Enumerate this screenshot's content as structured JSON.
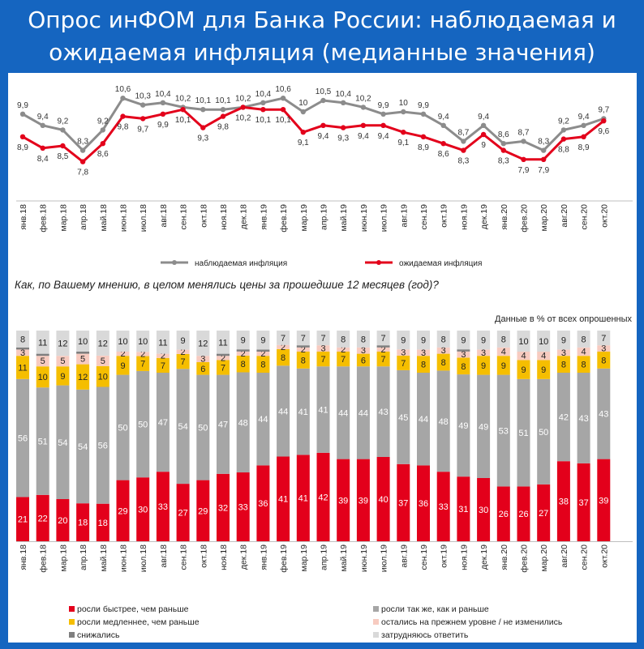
{
  "title": {
    "line1": "Опрос инФОМ для Банка России: наблюдаемая и",
    "line2": "ожидаемая инфляция (медианные значения)"
  },
  "colors": {
    "header_bg": "#1565c0",
    "observed": "#8c8c8c",
    "expected": "#e3001b",
    "faster": "#e3001b",
    "same": "#a6a6a6",
    "slower": "#f5be00",
    "unchanged": "#f7cbc0",
    "decreased": "#7f7f7f",
    "hard_to_say": "#d9d9d9"
  },
  "months": [
    "янв.18",
    "фев.18",
    "мар.18",
    "апр.18",
    "май.18",
    "июн.18",
    "июл.18",
    "авг.18",
    "сен.18",
    "окт.18",
    "ноя.18",
    "дек.18",
    "янв.19",
    "фев.19",
    "мар.19",
    "апр.19",
    "май.19",
    "июн.19",
    "июл.19",
    "авг.19",
    "сен.19",
    "окт.19",
    "ноя.19",
    "дек.19",
    "янв.20",
    "фев.20",
    "мар.20",
    "авг.20",
    "сен.20",
    "окт.20"
  ],
  "line_chart": {
    "type": "line",
    "ylim": [
      7,
      11
    ],
    "series": [
      {
        "name": "наблюдаемая инфляция",
        "values": [
          9.9,
          9.4,
          9.2,
          8.3,
          9.2,
          10.6,
          10.3,
          10.4,
          10.2,
          10.1,
          10.1,
          10.2,
          10.4,
          10.6,
          10.0,
          10.5,
          10.4,
          10.2,
          9.9,
          10.0,
          9.9,
          9.4,
          8.7,
          9.4,
          8.6,
          8.7,
          8.3,
          9.2,
          9.4,
          9.7
        ]
      },
      {
        "name": "ожидаемая инфляция",
        "values": [
          8.9,
          8.4,
          8.5,
          7.8,
          8.6,
          9.8,
          9.7,
          9.9,
          10.1,
          9.3,
          9.8,
          10.2,
          10.1,
          10.1,
          9.1,
          9.4,
          9.3,
          9.4,
          9.4,
          9.1,
          8.9,
          8.6,
          8.3,
          9.0,
          8.3,
          7.9,
          7.9,
          8.8,
          8.9,
          9.6
        ]
      }
    ]
  },
  "question": "Как, по Вашему мнению, в целом менялись цены за прошедшие 12 месяцев (год)?",
  "note": "Данные в % от всех опрошенных",
  "bar_chart": {
    "type": "bar",
    "stacked": true,
    "ylim": [
      0,
      100
    ],
    "series": [
      {
        "name": "росли быстрее, чем раньше",
        "key": "faster",
        "values": [
          21,
          22,
          20,
          18,
          18,
          29,
          30,
          33,
          27,
          29,
          32,
          33,
          36,
          41,
          41,
          42,
          39,
          39,
          40,
          37,
          36,
          33,
          31,
          30,
          26,
          26,
          27,
          38,
          37,
          39
        ]
      },
      {
        "name": "росли так же, как и раньше",
        "key": "same",
        "values": [
          56,
          51,
          54,
          54,
          56,
          50,
          50,
          47,
          54,
          50,
          47,
          48,
          44,
          44,
          41,
          41,
          44,
          44,
          43,
          45,
          44,
          48,
          49,
          49,
          53,
          51,
          50,
          42,
          43,
          43
        ]
      },
      {
        "name": "росли медленнее, чем раньше",
        "key": "slower",
        "values": [
          11,
          10,
          9,
          12,
          10,
          9,
          7,
          7,
          7,
          6,
          7,
          8,
          8,
          8,
          8,
          7,
          7,
          6,
          7,
          7,
          8,
          8,
          8,
          9,
          9,
          9,
          9,
          8,
          8,
          8
        ]
      },
      {
        "name": "остались на прежнем уровне / не изменились",
        "key": "unchanged",
        "values": [
          3,
          5,
          5,
          5,
          5,
          2,
          2,
          2,
          2,
          3,
          2,
          2,
          2,
          2,
          2,
          3,
          2,
          3,
          2,
          3,
          3,
          3,
          3,
          3,
          4,
          4,
          4,
          3,
          4,
          3
        ]
      },
      {
        "name": "снижались",
        "key": "decreased",
        "values": [
          1,
          1,
          0,
          1,
          0,
          0,
          0,
          0,
          0,
          0,
          1,
          1,
          1,
          0,
          1,
          0,
          0,
          0,
          1,
          0,
          0,
          0,
          1,
          0,
          0,
          0,
          0,
          0,
          0,
          0
        ]
      },
      {
        "name": "затрудняюсь ответить",
        "key": "hard_to_say",
        "values": [
          8,
          11,
          12,
          10,
          12,
          10,
          10,
          11,
          9,
          12,
          11,
          9,
          9,
          7,
          7,
          7,
          8,
          8,
          7,
          9,
          9,
          8,
          9,
          9,
          8,
          10,
          10,
          9,
          8,
          7
        ]
      }
    ]
  }
}
